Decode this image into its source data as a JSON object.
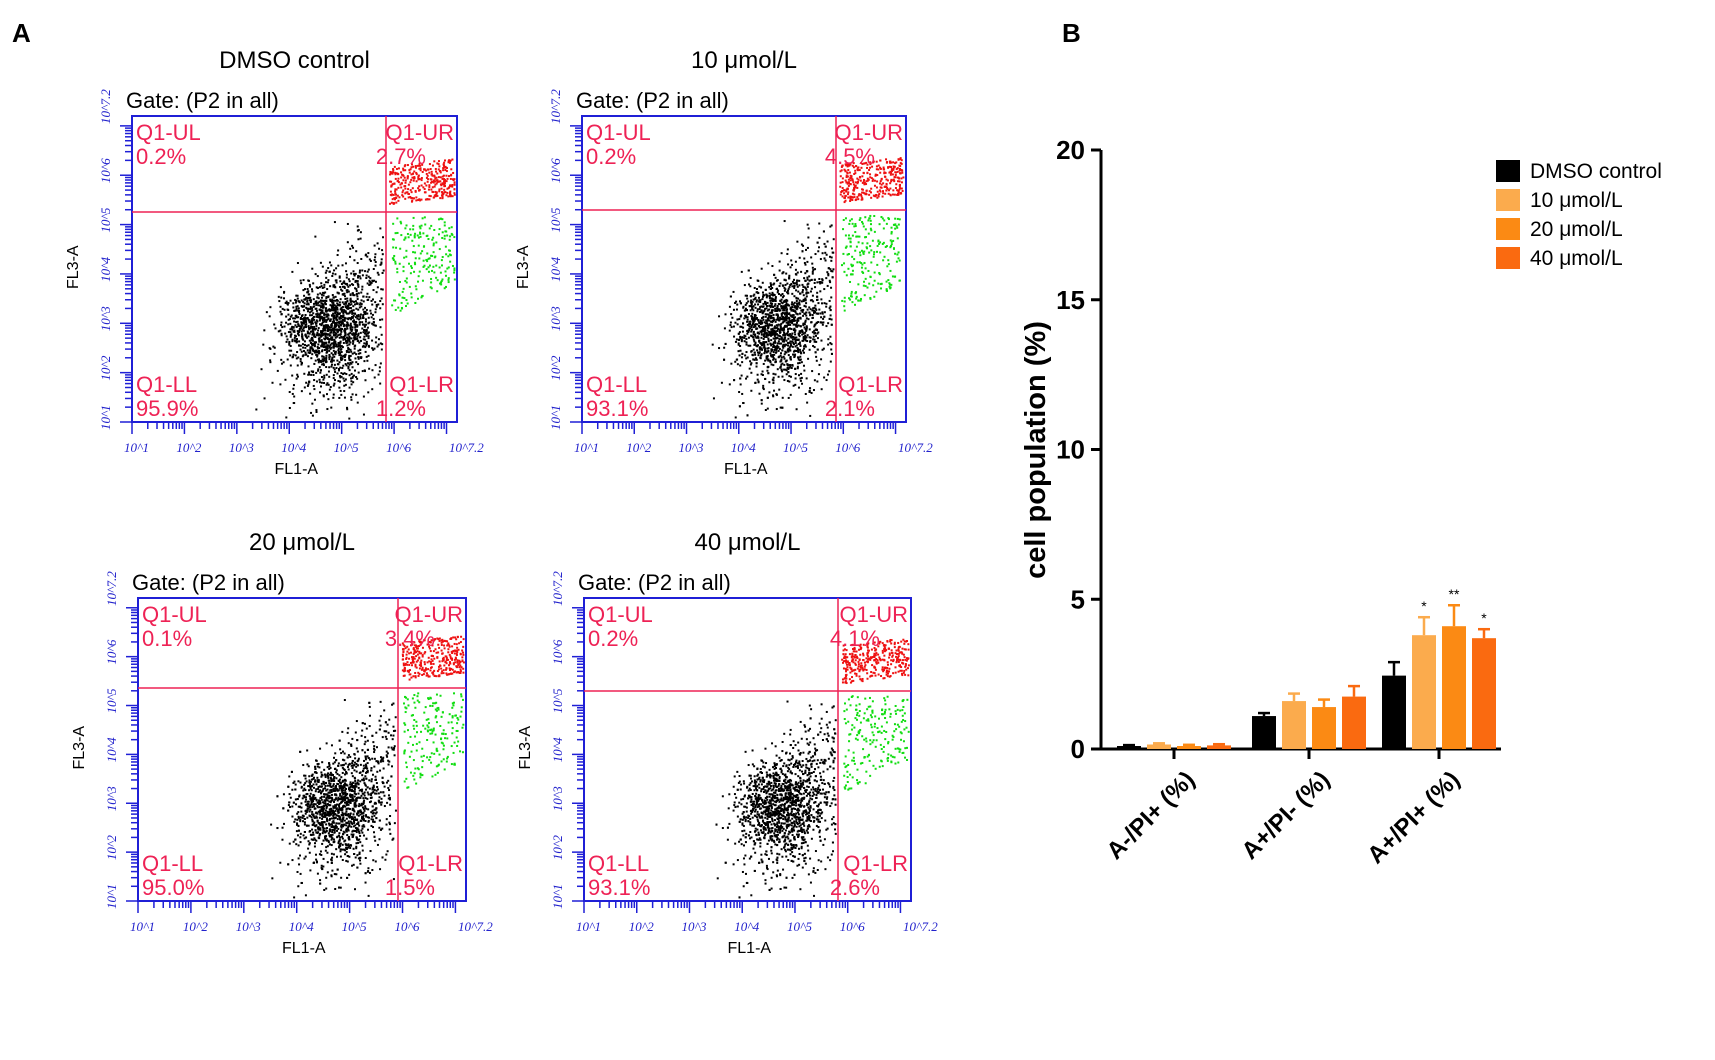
{
  "panels": {
    "a_label": "A",
    "b_label": "B"
  },
  "flow_plots": [
    {
      "title": "DMSO control",
      "gate": "Gate: (P2 in all)",
      "x_axis": "FL1-A",
      "y_axis": "FL3-A",
      "quadrants": {
        "ul_name": "Q1-UL",
        "ul_pct": "0.2%",
        "ur_name": "Q1-UR",
        "ur_pct": "2.7%",
        "ll_name": "Q1-LL",
        "ll_pct": "95.9%",
        "lr_name": "Q1-LR",
        "lr_pct": "1.2%"
      },
      "x_ticks": [
        "10^1",
        "10^2",
        "10^3",
        "10^4",
        "10^5",
        "10^6",
        "10^7.2"
      ],
      "y_ticks": [
        "10^1",
        "10^2",
        "10^3",
        "10^4",
        "10^5",
        "10^6",
        "10^7.2"
      ]
    },
    {
      "title": "10 μmol/L",
      "gate": "Gate: (P2 in all)",
      "x_axis": "FL1-A",
      "y_axis": "FL3-A",
      "quadrants": {
        "ul_name": "Q1-UL",
        "ul_pct": "0.2%",
        "ur_name": "Q1-UR",
        "ur_pct": "4.5%",
        "ll_name": "Q1-LL",
        "ll_pct": "93.1%",
        "lr_name": "Q1-LR",
        "lr_pct": "2.1%"
      },
      "x_ticks": [
        "10^1",
        "10^2",
        "10^3",
        "10^4",
        "10^5",
        "10^6",
        "10^7.2"
      ],
      "y_ticks": [
        "10^1",
        "10^2",
        "10^3",
        "10^4",
        "10^5",
        "10^6",
        "10^7.2"
      ]
    },
    {
      "title": "20 μmol/L",
      "gate": "Gate: (P2 in all)",
      "x_axis": "FL1-A",
      "y_axis": "FL3-A",
      "quadrants": {
        "ul_name": "Q1-UL",
        "ul_pct": "0.1%",
        "ur_name": "Q1-UR",
        "ur_pct": "3.4%",
        "ll_name": "Q1-LL",
        "ll_pct": "95.0%",
        "lr_name": "Q1-LR",
        "lr_pct": "1.5%"
      },
      "x_ticks": [
        "10^1",
        "10^2",
        "10^3",
        "10^4",
        "10^5",
        "10^6",
        "10^7.2"
      ],
      "y_ticks": [
        "10^1",
        "10^2",
        "10^3",
        "10^4",
        "10^5",
        "10^6",
        "10^7.2"
      ]
    },
    {
      "title": "40 μmol/L",
      "gate": "Gate: (P2 in all)",
      "x_axis": "FL1-A",
      "y_axis": "FL3-A",
      "quadrants": {
        "ul_name": "Q1-UL",
        "ul_pct": "0.2%",
        "ur_name": "Q1-UR",
        "ur_pct": "4.1%",
        "ll_name": "Q1-LL",
        "ll_pct": "93.1%",
        "lr_name": "Q1-LR",
        "lr_pct": "2.6%"
      },
      "x_ticks": [
        "10^1",
        "10^2",
        "10^3",
        "10^4",
        "10^5",
        "10^6",
        "10^7.2"
      ],
      "y_ticks": [
        "10^1",
        "10^2",
        "10^3",
        "10^4",
        "10^5",
        "10^6",
        "10^7.2"
      ]
    }
  ],
  "colors": {
    "gate_border": "#1f1fd6",
    "quad_line": "#ee2255",
    "events_neg": "#000000",
    "events_ur": "#ee1111",
    "events_lr": "#11dd11",
    "series": [
      "#000000",
      "#fbab4d",
      "#fb8a14",
      "#fa6a10"
    ]
  },
  "chart_data": {
    "type": "bar",
    "title": "",
    "xlabel": "",
    "ylabel": "cell population (%)",
    "ylim": [
      0,
      20
    ],
    "yticks": [
      0,
      5,
      10,
      15,
      20
    ],
    "categories": [
      "A-/PI+ (%)",
      "A+/PI- (%)",
      "A+/PI+ (%)"
    ],
    "series": [
      {
        "name": "DMSO control",
        "values": [
          0.1,
          1.1,
          2.45
        ],
        "errors": [
          0.03,
          0.1,
          0.45
        ],
        "sig": [
          "",
          "",
          ""
        ]
      },
      {
        "name": "10 μmol/L",
        "values": [
          0.15,
          1.6,
          3.8
        ],
        "errors": [
          0.04,
          0.25,
          0.6
        ],
        "sig": [
          "",
          "",
          "*"
        ]
      },
      {
        "name": "20 μmol/L",
        "values": [
          0.1,
          1.4,
          4.1
        ],
        "errors": [
          0.04,
          0.25,
          0.7
        ],
        "sig": [
          "",
          "",
          "**"
        ]
      },
      {
        "name": "40 μmol/L",
        "values": [
          0.12,
          1.75,
          3.7
        ],
        "errors": [
          0.04,
          0.35,
          0.3
        ],
        "sig": [
          "",
          "",
          "*"
        ]
      }
    ],
    "legend_position": "top-right"
  }
}
